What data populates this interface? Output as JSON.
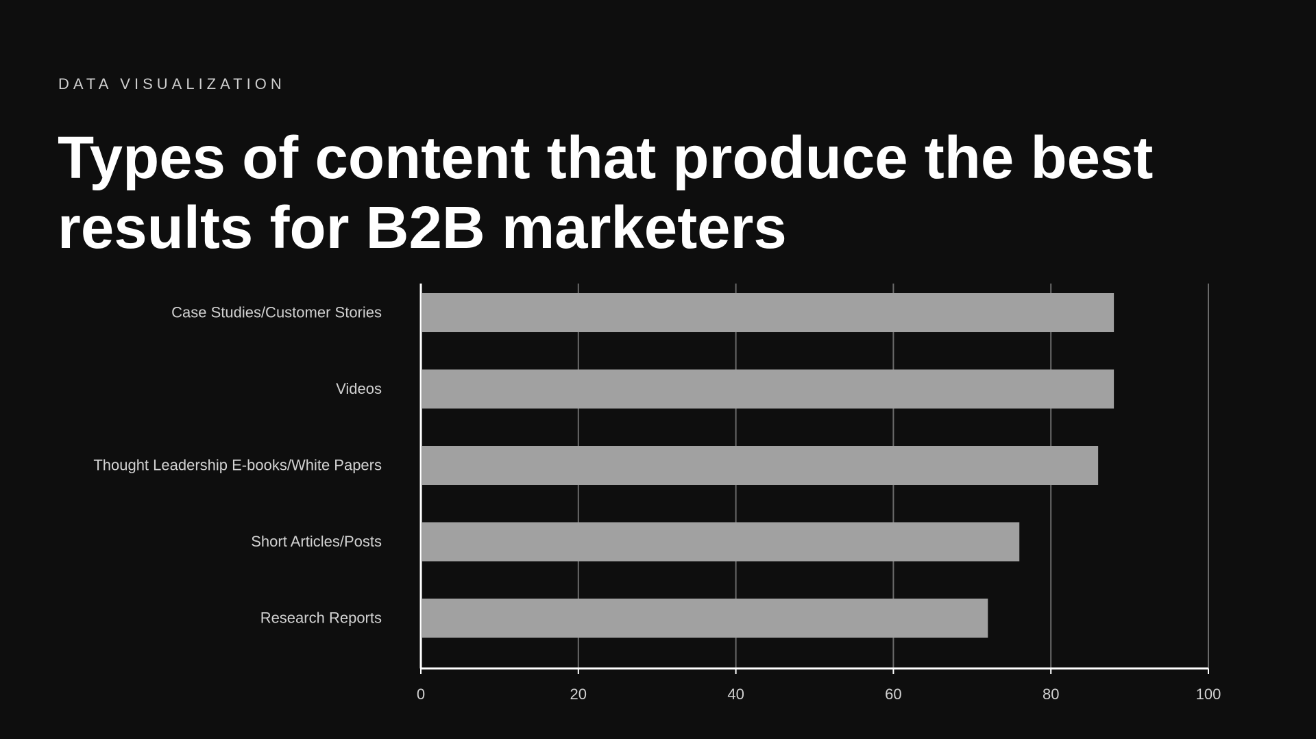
{
  "header": {
    "eyebrow": "DATA VISUALIZATION"
  },
  "chart_data": {
    "type": "bar",
    "orientation": "horizontal",
    "title": "Types of content that produce the best results for B2B marketers",
    "xlabel": "",
    "ylabel": "",
    "categories": [
      "Case Studies/Customer Stories",
      "Videos",
      "Thought Leadership E-books/White Papers",
      "Short Articles/Posts",
      "Research Reports"
    ],
    "values": [
      88,
      88,
      86,
      76,
      72
    ],
    "xlim": [
      0,
      100
    ],
    "x_ticks": [
      "0",
      "20",
      "40",
      "60",
      "80",
      "100"
    ],
    "grid": "vertical",
    "legend": "none",
    "colors": {
      "background": "#0e0e0e",
      "bar": "#a1a1a1",
      "grid": "#6a6a6a",
      "axis": "#ffffff",
      "text": "#d2d2d2"
    }
  }
}
